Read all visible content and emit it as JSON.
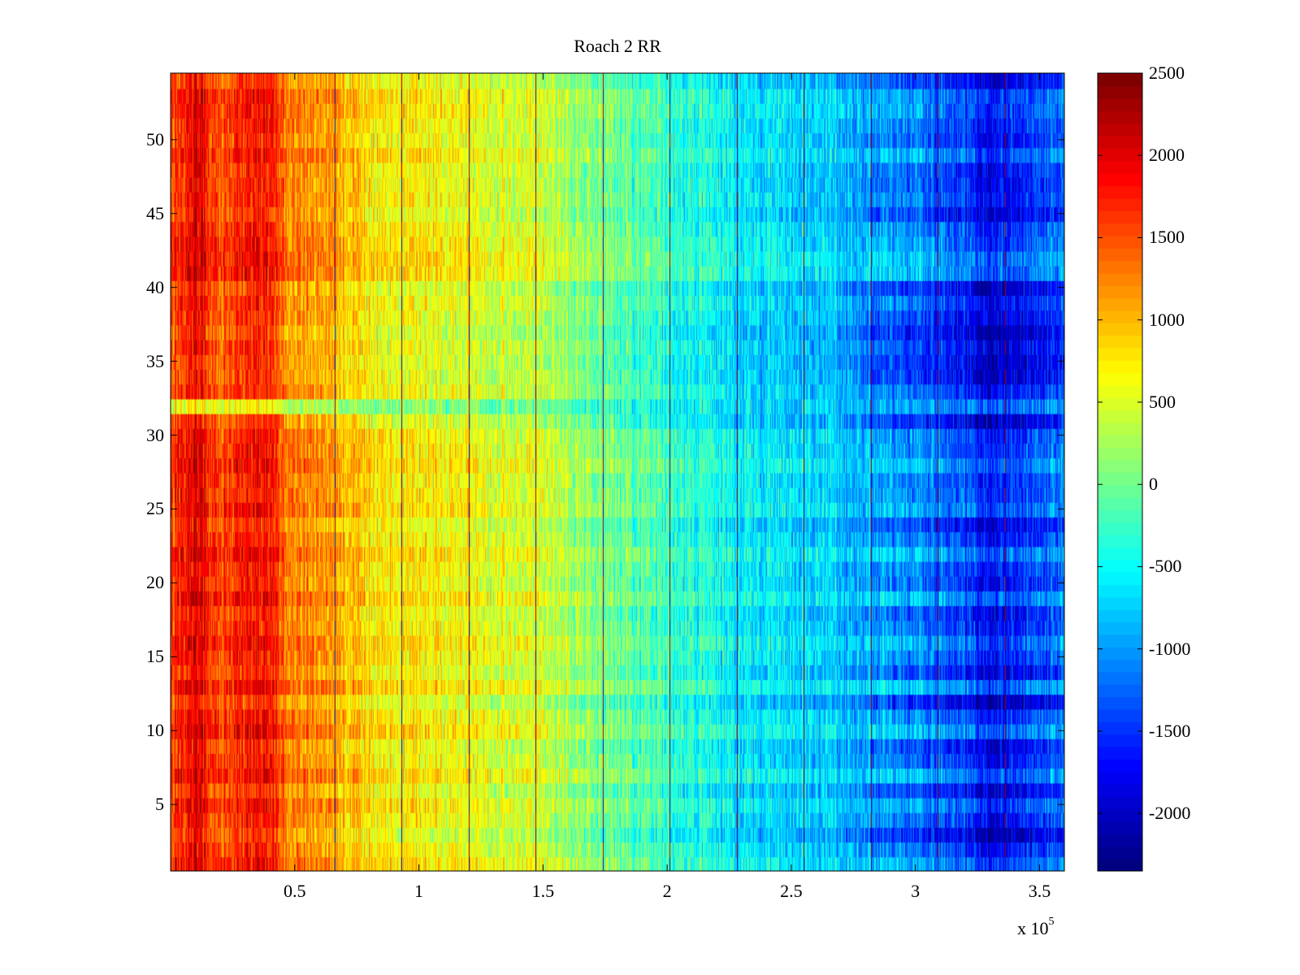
{
  "chart_data": {
    "type": "heatmap",
    "title": "Roach 2 RR",
    "xlabel": "",
    "ylabel": "",
    "x_multiplier_label": {
      "base": "x 10",
      "exponent": "5"
    },
    "xlim": [
      0,
      360000
    ],
    "ylim": [
      0.5,
      54.5
    ],
    "rows": 54,
    "x_ticks": [
      {
        "value": 50000,
        "label": "0.5"
      },
      {
        "value": 100000,
        "label": "1"
      },
      {
        "value": 150000,
        "label": "1.5"
      },
      {
        "value": 200000,
        "label": "2"
      },
      {
        "value": 250000,
        "label": "2.5"
      },
      {
        "value": 300000,
        "label": "3"
      },
      {
        "value": 350000,
        "label": "3.5"
      }
    ],
    "y_ticks": [
      {
        "value": 5,
        "label": "5"
      },
      {
        "value": 10,
        "label": "10"
      },
      {
        "value": 15,
        "label": "15"
      },
      {
        "value": 20,
        "label": "20"
      },
      {
        "value": 25,
        "label": "25"
      },
      {
        "value": 30,
        "label": "30"
      },
      {
        "value": 35,
        "label": "35"
      },
      {
        "value": 40,
        "label": "40"
      },
      {
        "value": 45,
        "label": "45"
      },
      {
        "value": 50,
        "label": "50"
      }
    ],
    "colorbar": {
      "colormap": "jet",
      "clim": [
        -2350,
        2500
      ],
      "ticks": [
        {
          "value": 2500,
          "label": "2500"
        },
        {
          "value": 2000,
          "label": "2000"
        },
        {
          "value": 1500,
          "label": "1500"
        },
        {
          "value": 1000,
          "label": "1000"
        },
        {
          "value": 500,
          "label": "500"
        },
        {
          "value": 0,
          "label": "0"
        },
        {
          "value": -500,
          "label": "-500"
        },
        {
          "value": -1000,
          "label": "-1000"
        },
        {
          "value": -1500,
          "label": "-1500"
        },
        {
          "value": -2000,
          "label": "-2000"
        }
      ]
    },
    "column_trend": [
      {
        "x": 0,
        "value": 1500
      },
      {
        "x": 10000,
        "value": 2000
      },
      {
        "x": 20000,
        "value": 1500
      },
      {
        "x": 38000,
        "value": 1800
      },
      {
        "x": 50000,
        "value": 1200
      },
      {
        "x": 65000,
        "value": 1100
      },
      {
        "x": 80000,
        "value": 800
      },
      {
        "x": 100000,
        "value": 700
      },
      {
        "x": 130000,
        "value": 500
      },
      {
        "x": 150000,
        "value": 400
      },
      {
        "x": 175000,
        "value": 0
      },
      {
        "x": 200000,
        "value": -300
      },
      {
        "x": 230000,
        "value": -600
      },
      {
        "x": 260000,
        "value": -700
      },
      {
        "x": 285000,
        "value": -1000
      },
      {
        "x": 310000,
        "value": -1300
      },
      {
        "x": 330000,
        "value": -1700
      },
      {
        "x": 360000,
        "value": -1300
      }
    ],
    "vertical_streaks_x": [
      66000,
      93000,
      120000,
      147000,
      174000,
      201000,
      228000,
      255000,
      282000,
      309000,
      336000
    ],
    "anomalous_rows": [
      32
    ]
  }
}
